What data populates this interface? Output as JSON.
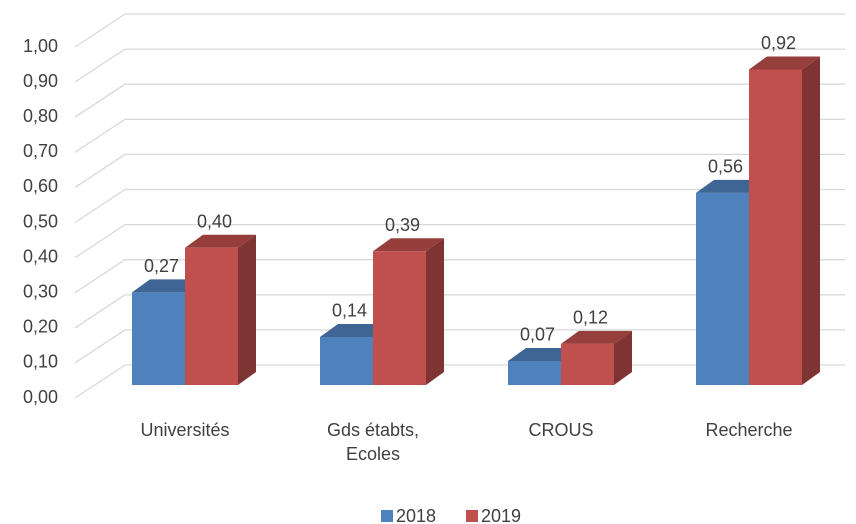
{
  "chart_data": {
    "type": "bar3d",
    "categories": [
      "Universités",
      "Gds étabts, Ecoles",
      "CROUS",
      "Recherche"
    ],
    "series": [
      {
        "name": "2018",
        "color": "#4f81bd",
        "values": [
          0.27,
          0.14,
          0.07,
          0.56
        ],
        "value_labels": [
          "0,27",
          "0,14",
          "0,07",
          "0,56"
        ]
      },
      {
        "name": "2019",
        "color": "#c0504d",
        "values": [
          0.4,
          0.39,
          0.12,
          0.92
        ],
        "value_labels": [
          "0,40",
          "0,39",
          "0,12",
          "0,92"
        ]
      }
    ],
    "ylim": [
      0,
      1
    ],
    "yticks": [
      {
        "value": 0,
        "label": "0,00"
      },
      {
        "value": 0.1,
        "label": "0,10"
      },
      {
        "value": 0.2,
        "label": "0,20"
      },
      {
        "value": 0.3,
        "label": "0,30"
      },
      {
        "value": 0.4,
        "label": "0,40"
      },
      {
        "value": 0.5,
        "label": "0,50"
      },
      {
        "value": 0.6,
        "label": "0,60"
      },
      {
        "value": 0.7,
        "label": "0,70"
      },
      {
        "value": 0.8,
        "label": "0,80"
      },
      {
        "value": 0.9,
        "label": "0,90"
      },
      {
        "value": 1,
        "label": "1,00"
      }
    ],
    "grid": true,
    "legend": "bottom"
  }
}
